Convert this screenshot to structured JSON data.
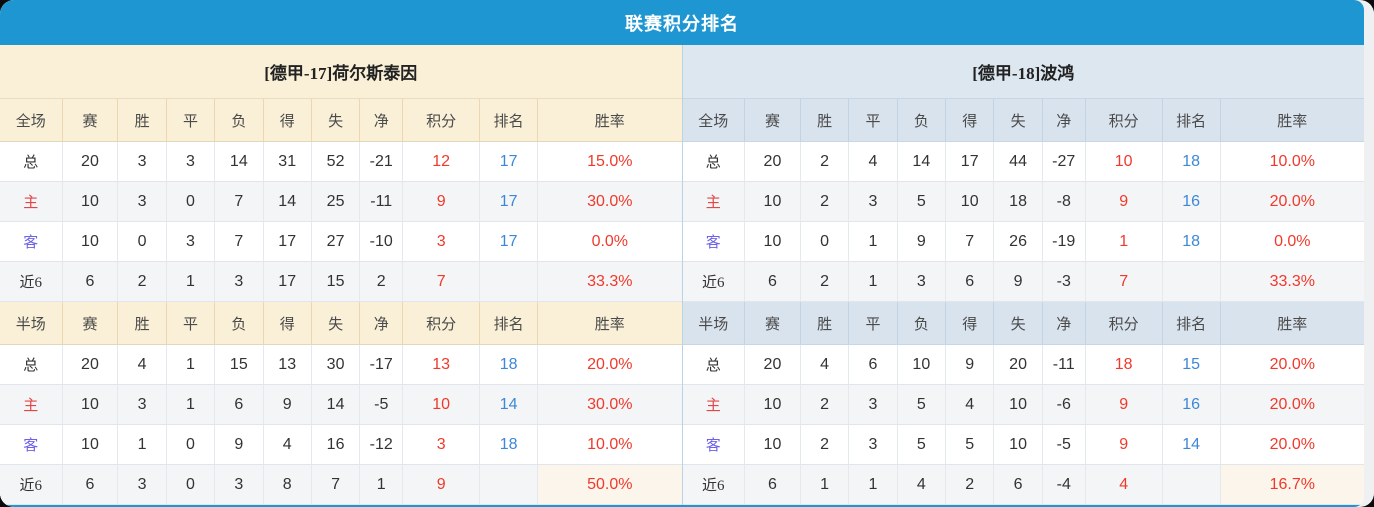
{
  "title": "联赛积分排名",
  "colors": {
    "accent_blue": "#1e96d2",
    "left_header_bg": "#faf0d7",
    "right_header_bg": "#dce7f0",
    "points_red": "#f0392b",
    "rank_blue": "#3d87d8",
    "home_label_red": "#e14648",
    "away_label_violet": "#6e62e8"
  },
  "columns": {
    "group_full": "全场",
    "group_half": "半场",
    "stats": [
      "赛",
      "胜",
      "平",
      "负",
      "得",
      "失",
      "净",
      "积分",
      "排名",
      "胜率"
    ]
  },
  "teams": [
    {
      "name": "[德甲-17]荷尔斯泰因",
      "full": {
        "rows": [
          {
            "label": "总",
            "type": "total",
            "values": [
              "20",
              "3",
              "3",
              "14",
              "31",
              "52",
              "-21"
            ],
            "points": "12",
            "rank": "17",
            "rate": "15.0%"
          },
          {
            "label": "主",
            "type": "home",
            "values": [
              "10",
              "3",
              "0",
              "7",
              "14",
              "25",
              "-11"
            ],
            "points": "9",
            "rank": "17",
            "rate": "30.0%"
          },
          {
            "label": "客",
            "type": "away",
            "values": [
              "10",
              "0",
              "3",
              "7",
              "17",
              "27",
              "-10"
            ],
            "points": "3",
            "rank": "17",
            "rate": "0.0%"
          },
          {
            "label": "近6",
            "type": "recent",
            "values": [
              "6",
              "2",
              "1",
              "3",
              "17",
              "15",
              "2"
            ],
            "points": "7",
            "rank": "",
            "rate": "33.3%"
          }
        ]
      },
      "half": {
        "rows": [
          {
            "label": "总",
            "type": "total",
            "values": [
              "20",
              "4",
              "1",
              "15",
              "13",
              "30",
              "-17"
            ],
            "points": "13",
            "rank": "18",
            "rate": "20.0%"
          },
          {
            "label": "主",
            "type": "home",
            "values": [
              "10",
              "3",
              "1",
              "6",
              "9",
              "14",
              "-5"
            ],
            "points": "10",
            "rank": "14",
            "rate": "30.0%"
          },
          {
            "label": "客",
            "type": "away",
            "values": [
              "10",
              "1",
              "0",
              "9",
              "4",
              "16",
              "-12"
            ],
            "points": "3",
            "rank": "18",
            "rate": "10.0%"
          },
          {
            "label": "近6",
            "type": "recent",
            "values": [
              "6",
              "3",
              "0",
              "3",
              "8",
              "7",
              "1"
            ],
            "points": "9",
            "rank": "",
            "rate": "50.0%"
          }
        ]
      }
    },
    {
      "name": "[德甲-18]波鸿",
      "full": {
        "rows": [
          {
            "label": "总",
            "type": "total",
            "values": [
              "20",
              "2",
              "4",
              "14",
              "17",
              "44",
              "-27"
            ],
            "points": "10",
            "rank": "18",
            "rate": "10.0%"
          },
          {
            "label": "主",
            "type": "home",
            "values": [
              "10",
              "2",
              "3",
              "5",
              "10",
              "18",
              "-8"
            ],
            "points": "9",
            "rank": "16",
            "rate": "20.0%"
          },
          {
            "label": "客",
            "type": "away",
            "values": [
              "10",
              "0",
              "1",
              "9",
              "7",
              "26",
              "-19"
            ],
            "points": "1",
            "rank": "18",
            "rate": "0.0%"
          },
          {
            "label": "近6",
            "type": "recent",
            "values": [
              "6",
              "2",
              "1",
              "3",
              "6",
              "9",
              "-3"
            ],
            "points": "7",
            "rank": "",
            "rate": "33.3%"
          }
        ]
      },
      "half": {
        "rows": [
          {
            "label": "总",
            "type": "total",
            "values": [
              "20",
              "4",
              "6",
              "10",
              "9",
              "20",
              "-11"
            ],
            "points": "18",
            "rank": "15",
            "rate": "20.0%"
          },
          {
            "label": "主",
            "type": "home",
            "values": [
              "10",
              "2",
              "3",
              "5",
              "4",
              "10",
              "-6"
            ],
            "points": "9",
            "rank": "16",
            "rate": "20.0%"
          },
          {
            "label": "客",
            "type": "away",
            "values": [
              "10",
              "2",
              "3",
              "5",
              "5",
              "10",
              "-5"
            ],
            "points": "9",
            "rank": "14",
            "rate": "20.0%"
          },
          {
            "label": "近6",
            "type": "recent",
            "values": [
              "6",
              "1",
              "1",
              "4",
              "2",
              "6",
              "-4"
            ],
            "points": "4",
            "rank": "",
            "rate": "16.7%"
          }
        ]
      }
    }
  ]
}
